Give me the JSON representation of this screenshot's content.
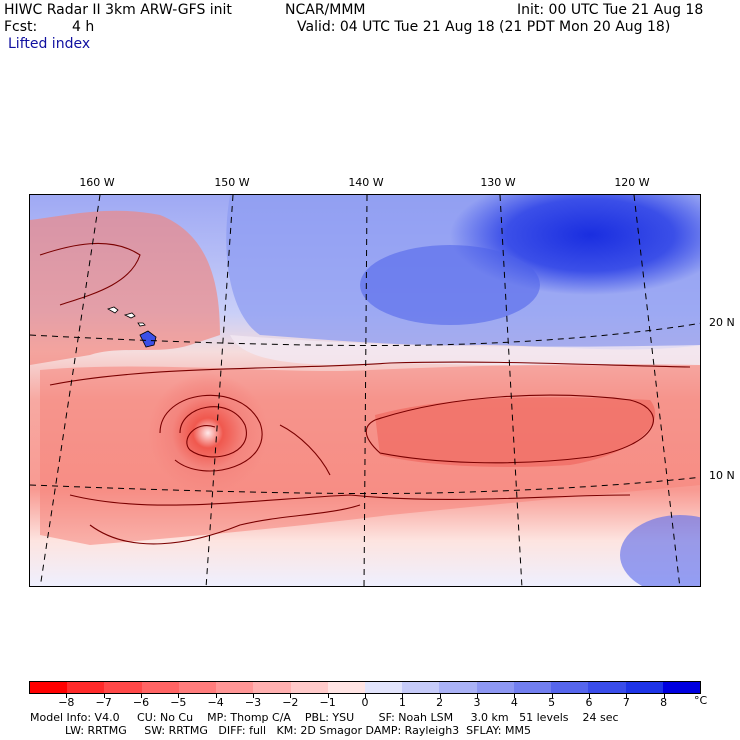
{
  "header": {
    "title": "HIWC Radar II 3km ARW-GFS init",
    "org": "NCAR/MMM",
    "init": "Init: 00 UTC Tue 21 Aug 18",
    "fcst_label": "Fcst:",
    "fcst_value": "4 h",
    "valid": "Valid: 04 UTC Tue 21 Aug 18 (21 PDT Mon 20 Aug 18)",
    "field": "Lifted index"
  },
  "map": {
    "longitude_labels": [
      "160 W",
      "150 W",
      "140 W",
      "130 W",
      "120 W"
    ],
    "latitude_labels": [
      "20 N",
      "10 N"
    ],
    "colors": {
      "deep_red": "#e83a3a",
      "mid_red": "#f4847e",
      "light_red": "#fbc6c0",
      "near_zero": "#fff0ec",
      "light_blue": "#d7dbf8",
      "mid_blue": "#7f8ff0",
      "deep_blue": "#1a2ee0",
      "contour": "#7a0000"
    }
  },
  "colorbar": {
    "tick_labels": [
      "−8",
      "−7",
      "−6",
      "−5",
      "−4",
      "−3",
      "−2",
      "−1",
      "0",
      "1",
      "2",
      "3",
      "4",
      "5",
      "6",
      "7",
      "8"
    ],
    "unit": "°C",
    "colors": [
      "#ff0000",
      "#ff2a2a",
      "#ff4848",
      "#ff6464",
      "#ff7c7c",
      "#ff9696",
      "#ffb0b0",
      "#ffcaca",
      "#ffe4e4",
      "#e2e4fc",
      "#c6cbf9",
      "#aab2f6",
      "#8e98f3",
      "#727ff0",
      "#5666ed",
      "#3a4dea",
      "#1e34e7",
      "#0000e0"
    ]
  },
  "model_info": {
    "line1": "Model Info: V4.0     CU: No Cu    MP: Thomp C/A    PBL: YSU       SF: Noah LSM     3.0 km   51 levels    24 sec",
    "line2": "          LW: RRTMG     SW: RRTMG   DIFF: full   KM: 2D Smagor DAMP: Rayleigh3  SFLAY: MM5"
  }
}
